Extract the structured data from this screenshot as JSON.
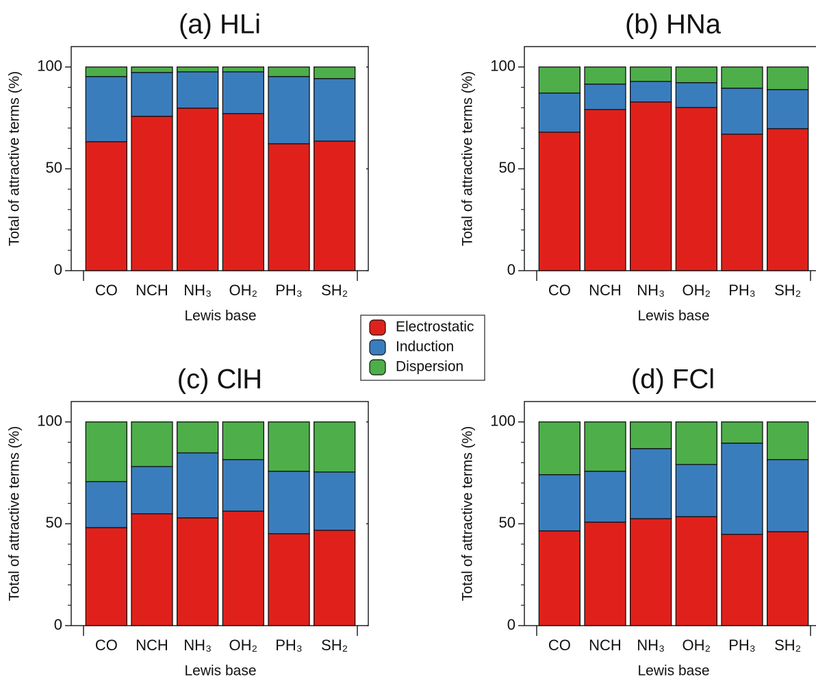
{
  "chart_data": [
    {
      "type": "bar",
      "stacked": true,
      "title": "(a) HLi",
      "xlabel": "Lewis base",
      "ylabel": "Total of attractive terms (%)",
      "categories": [
        "CO",
        "NCH",
        "NH₃",
        "OH₂",
        "PH₃",
        "SH₂"
      ],
      "series": [
        {
          "name": "Electrostatic",
          "color": "#e0211b",
          "values": [
            63.3,
            75.8,
            79.8,
            77.1,
            62.3,
            63.6
          ]
        },
        {
          "name": "Induction",
          "color": "#3a7dbd",
          "values": [
            32.0,
            21.5,
            17.8,
            20.5,
            33.0,
            30.7
          ]
        },
        {
          "name": "Dispersion",
          "color": "#4dae4a",
          "values": [
            4.7,
            2.7,
            2.4,
            2.4,
            4.7,
            5.7
          ]
        }
      ],
      "ylim": [
        0,
        110
      ],
      "yticks": [
        0,
        50,
        100
      ],
      "yminorticks": [
        10,
        20,
        30,
        40,
        60,
        70,
        80,
        90
      ]
    },
    {
      "type": "bar",
      "stacked": true,
      "title": "(b) HNa",
      "xlabel": "Lewis base",
      "ylabel": "Total of attractive terms (%)",
      "categories": [
        "CO",
        "NCH",
        "NH₃",
        "OH₂",
        "PH₃",
        "SH₂"
      ],
      "series": [
        {
          "name": "Electrostatic",
          "color": "#e0211b",
          "values": [
            68.0,
            79.1,
            82.8,
            80.1,
            67.0,
            69.7
          ]
        },
        {
          "name": "Induction",
          "color": "#3a7dbd",
          "values": [
            19.2,
            12.5,
            10.1,
            12.2,
            22.6,
            19.2
          ]
        },
        {
          "name": "Dispersion",
          "color": "#4dae4a",
          "values": [
            12.8,
            8.4,
            7.1,
            7.7,
            10.4,
            11.1
          ]
        }
      ],
      "ylim": [
        0,
        110
      ],
      "yticks": [
        0,
        50,
        100
      ],
      "yminorticks": [
        10,
        20,
        30,
        40,
        60,
        70,
        80,
        90
      ]
    },
    {
      "type": "bar",
      "stacked": true,
      "title": "(c) ClH",
      "xlabel": "Lewis base",
      "ylabel": "Total of attractive terms (%)",
      "categories": [
        "CO",
        "NCH",
        "NH₃",
        "OH₂",
        "PH₃",
        "SH₂"
      ],
      "series": [
        {
          "name": "Electrostatic",
          "color": "#e0211b",
          "values": [
            48.1,
            54.9,
            52.9,
            56.2,
            45.1,
            46.8
          ]
        },
        {
          "name": "Induction",
          "color": "#3a7dbd",
          "values": [
            22.6,
            23.2,
            31.9,
            25.3,
            30.7,
            28.6
          ]
        },
        {
          "name": "Dispersion",
          "color": "#4dae4a",
          "values": [
            29.3,
            21.9,
            15.2,
            18.5,
            24.2,
            24.6
          ]
        }
      ],
      "ylim": [
        0,
        110
      ],
      "yticks": [
        0,
        50,
        100
      ],
      "yminorticks": [
        10,
        20,
        30,
        40,
        60,
        70,
        80,
        90
      ]
    },
    {
      "type": "bar",
      "stacked": true,
      "title": "(d) FCl",
      "xlabel": "Lewis base",
      "ylabel": "Total of attractive terms (%)",
      "categories": [
        "CO",
        "NCH",
        "NH₃",
        "OH₂",
        "PH₃",
        "SH₂"
      ],
      "series": [
        {
          "name": "Electrostatic",
          "color": "#e0211b",
          "values": [
            46.5,
            50.8,
            52.5,
            53.5,
            44.8,
            46.1
          ]
        },
        {
          "name": "Induction",
          "color": "#3a7dbd",
          "values": [
            27.6,
            25.0,
            34.4,
            25.6,
            44.8,
            35.4
          ]
        },
        {
          "name": "Dispersion",
          "color": "#4dae4a",
          "values": [
            25.9,
            24.2,
            13.1,
            20.9,
            10.4,
            18.5
          ]
        }
      ],
      "ylim": [
        0,
        110
      ],
      "yticks": [
        0,
        50,
        100
      ],
      "yminorticks": [
        10,
        20,
        30,
        40,
        60,
        70,
        80,
        90
      ]
    }
  ]
}
